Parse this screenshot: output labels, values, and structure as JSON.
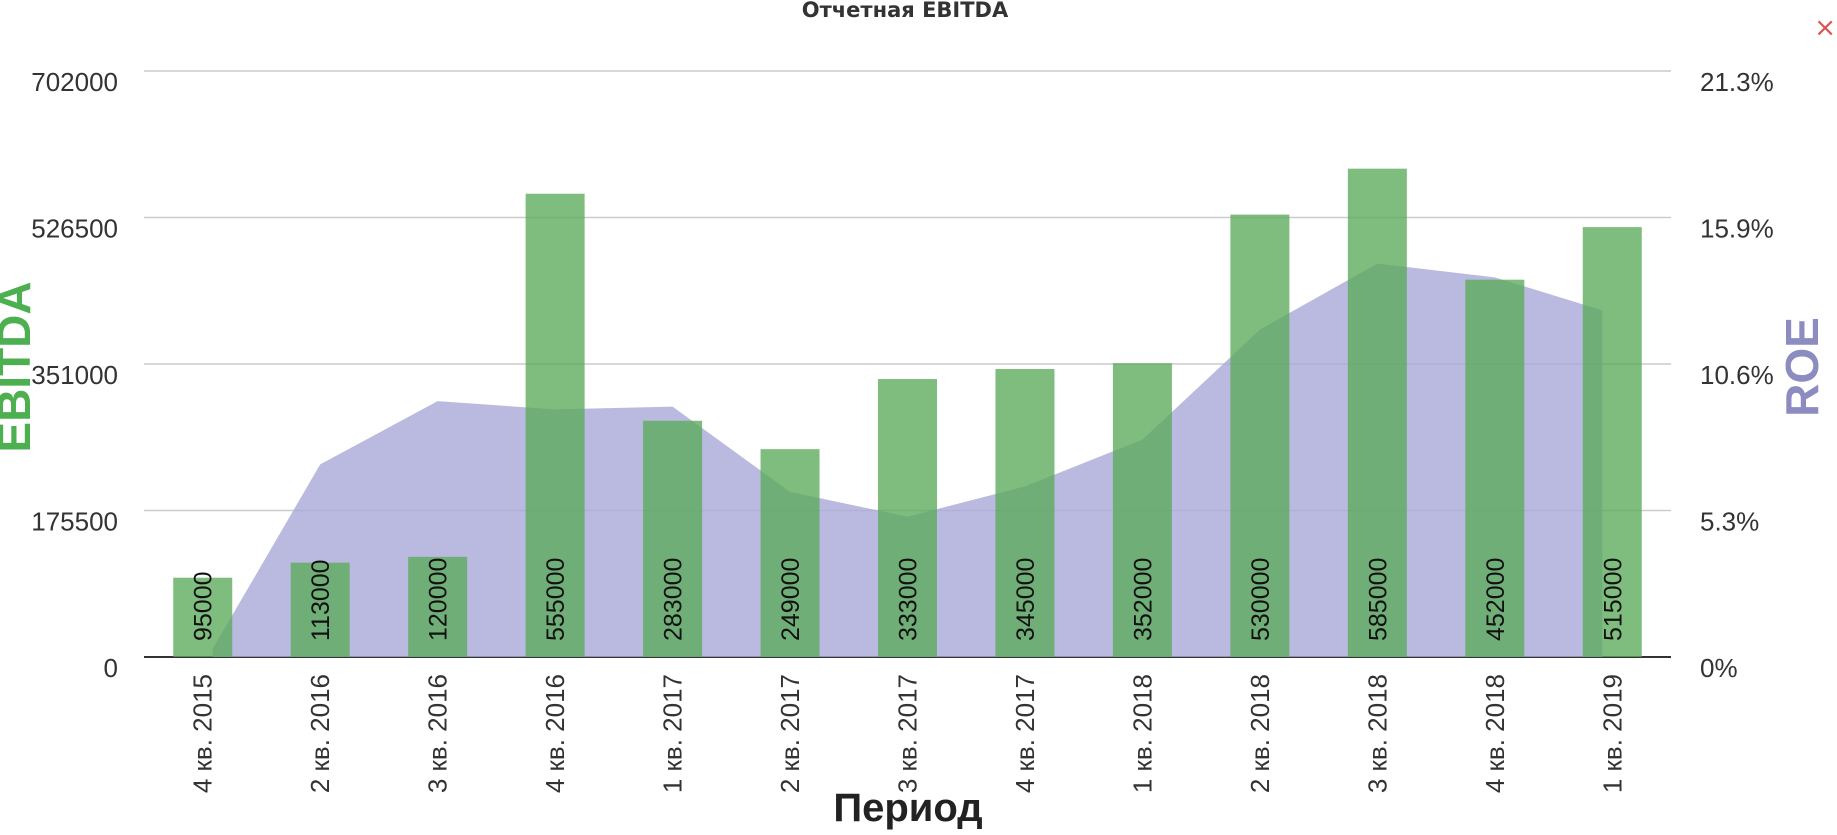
{
  "chart_data": {
    "type": "bar",
    "title": "Отчетная EBITDA",
    "xlabel": "Период",
    "ylabel": "EBITDA",
    "y2label": "ROE",
    "categories": [
      "4 кв. 2015",
      "2 кв. 2016",
      "3 кв. 2016",
      "4 кв. 2016",
      "1 кв. 2017",
      "2 кв. 2017",
      "3 кв. 2017",
      "4 кв. 2017",
      "1 кв. 2018",
      "2 кв. 2018",
      "3 кв. 2018",
      "4 кв. 2018",
      "1 кв. 2019"
    ],
    "ylim": [
      0,
      702000
    ],
    "y_ticks": [
      "0",
      "175500",
      "351000",
      "526500",
      "702000"
    ],
    "y2lim": [
      0,
      21.3
    ],
    "y2_ticks": [
      "0%",
      "5.3%",
      "10.6%",
      "15.9%",
      "21.3%"
    ],
    "grid": true,
    "series": [
      {
        "name": "EBITDA",
        "type": "bar",
        "axis": "left",
        "color": "#5aaa5a",
        "values": [
          95000,
          113000,
          120000,
          555000,
          283000,
          249000,
          333000,
          345000,
          352000,
          530000,
          585000,
          452000,
          515000
        ],
        "data_labels": [
          "95000",
          "113000",
          "120000",
          "555000",
          "283000",
          "249000",
          "333000",
          "345000",
          "352000",
          "530000",
          "585000",
          "452000",
          "515000"
        ]
      },
      {
        "name": "ROE",
        "type": "area",
        "axis": "right",
        "color": "#a9a9d8",
        "values": [
          0.3,
          7.0,
          9.3,
          9.0,
          9.1,
          6.0,
          5.1,
          6.2,
          7.9,
          11.9,
          14.3,
          13.8,
          12.6
        ]
      }
    ]
  },
  "colors": {
    "ebitda_label": "#4caf50",
    "roe_label": "#8c8cc0",
    "grid": "#cccccc",
    "axis": "#333333",
    "close": "#d9534f"
  },
  "close_icon": "close-icon"
}
